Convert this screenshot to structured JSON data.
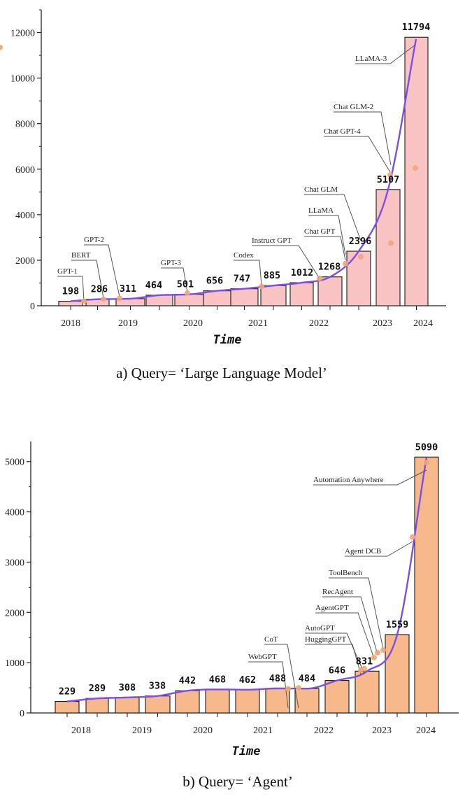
{
  "chart_data": [
    {
      "type": "bar",
      "caption": "a)  Query= ‘Large Language Model’",
      "xlabel": "Time",
      "ylabel": "",
      "x_ticks": [
        "2018",
        "2019",
        "2020",
        "2021",
        "2022",
        "2023",
        "2024"
      ],
      "y_ticks": [
        "0",
        "2000",
        "4000",
        "6000",
        "8000",
        "10000",
        "12000"
      ],
      "ylim": [
        0,
        13000
      ],
      "bar_color": "#f9c2c3",
      "curve_color": "#7b4fe3",
      "marker_color": "#f2a673",
      "values": [
        198,
        286,
        311,
        464,
        501,
        656,
        747,
        885,
        1012,
        1268,
        2396,
        5107,
        11794
      ],
      "value_labels": [
        "198",
        "286",
        "311",
        "464",
        "501",
        "656",
        "747",
        "885",
        "1012",
        "1268",
        "2396",
        "5107",
        "11794"
      ],
      "annotations": [
        {
          "label": "GPT-1",
          "y": 200
        },
        {
          "label": "BERT",
          "y": 290
        },
        {
          "label": "GPT-2",
          "y": 330
        },
        {
          "label": "GPT-3",
          "y": 560
        },
        {
          "label": "Codex",
          "y": 850
        },
        {
          "label": "Instruct GPT",
          "y": 1200
        },
        {
          "label": "Chat GPT",
          "y": 1850
        },
        {
          "label": "LLaMA",
          "y": 2150
        },
        {
          "label": "Chat GLM",
          "y": 2750
        },
        {
          "label": "Chat GPT-4",
          "y": 5750
        },
        {
          "label": "Chat GLM-2",
          "y": 6050
        },
        {
          "label": "LLaMA-3",
          "y": 11350
        }
      ]
    },
    {
      "type": "bar",
      "caption": "b)  Query= ‘Agent’",
      "xlabel": "Time",
      "ylabel": "",
      "x_ticks": [
        "2018",
        "2019",
        "2020",
        "2021",
        "2022",
        "2023",
        "2024"
      ],
      "y_ticks": [
        "0",
        "1000",
        "2000",
        "3000",
        "4000",
        "5000"
      ],
      "ylim": [
        0,
        5400
      ],
      "bar_color": "#f7b98c",
      "curve_color": "#7b4fe3",
      "marker_color": "#f2a673",
      "values": [
        229,
        289,
        308,
        338,
        442,
        468,
        462,
        488,
        484,
        646,
        831,
        1559,
        5090
      ],
      "value_labels": [
        "229",
        "289",
        "308",
        "338",
        "442",
        "468",
        "462",
        "488",
        "484",
        "646",
        "831",
        "1559",
        "5090"
      ],
      "annotations": [
        {
          "label": "WebGPT",
          "y": 480
        },
        {
          "label": "CoT",
          "y": 500
        },
        {
          "label": "HuggingGPT",
          "y": 850
        },
        {
          "label": "AutoGPT",
          "y": 880
        },
        {
          "label": "AgentGPT",
          "y": 1100
        },
        {
          "label": "RecAgent",
          "y": 1200
        },
        {
          "label": "ToolBench",
          "y": 1250
        },
        {
          "label": "Agent DCB",
          "y": 3500
        },
        {
          "label": "Automation Anywhere",
          "y": 4980
        }
      ]
    }
  ]
}
